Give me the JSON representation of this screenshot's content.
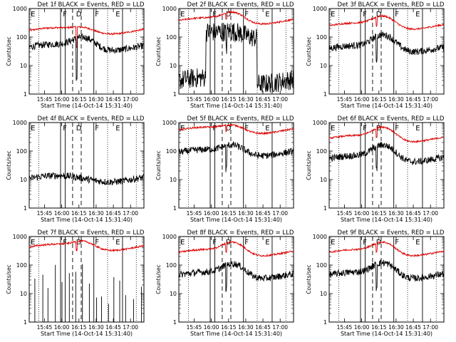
{
  "chart_data": [
    {
      "type": "line",
      "title": "Det 1f BLACK = Events, RED = LLD",
      "xlabel": "Start Time (14-Oct-14 15:31:40)",
      "ylabel": "Counts/sec",
      "yscale": "log",
      "ylim": [
        1,
        1000
      ],
      "x_ticks": [
        "15:45",
        "16:00",
        "16:15",
        "16:30",
        "16:45",
        "17:00"
      ],
      "y_ticks": [
        "1",
        "10",
        "100",
        "1000"
      ],
      "region_labels": [
        "E",
        "F",
        "D",
        "F",
        "E"
      ],
      "series": [
        {
          "color": "#dd0000",
          "approx_level": 170,
          "bump": 1.3,
          "drop": 0.2
        },
        {
          "color": "#000000",
          "approx_level": 45,
          "bump": 2.2,
          "drop": 0.04
        }
      ]
    },
    {
      "type": "line",
      "title": "Det 2f BLACK = Events, RED = LLD",
      "xlabel": "Start Time (14-Oct-14 15:31:40)",
      "ylabel": "Counts/sec",
      "yscale": "log",
      "ylim": [
        1,
        1000
      ],
      "x_ticks": [
        "15:45",
        "16:00",
        "16:15",
        "16:30",
        "16:45",
        "17:00"
      ],
      "y_ticks": [
        "1",
        "10",
        "100",
        "1000"
      ],
      "region_labels": [
        "E",
        "F",
        "D",
        "F",
        "E"
      ],
      "series": [
        {
          "color": "#dd0000",
          "approx_level": 380,
          "bump": 2.0,
          "drop": 0.6
        },
        {
          "color": "#000000",
          "approx_level": 3,
          "plateau": 120,
          "bump": 1.3,
          "drop": 0.3
        }
      ]
    },
    {
      "type": "line",
      "title": "Det 3f BLACK = Events, RED = LLD",
      "xlabel": "Start Time (14-Oct-14 15:31:40)",
      "ylabel": "Counts/sec",
      "yscale": "log",
      "ylim": [
        1,
        1000
      ],
      "x_ticks": [
        "15:45",
        "16:00",
        "16:15",
        "16:30",
        "16:45",
        "17:00"
      ],
      "y_ticks": [
        "1",
        "10",
        "100",
        "1000"
      ],
      "region_labels": [
        "E",
        "F",
        "D",
        "F",
        "E"
      ],
      "series": [
        {
          "color": "#dd0000",
          "approx_level": 250,
          "bump": 2.2,
          "drop": 0.5
        },
        {
          "color": "#000000",
          "approx_level": 40,
          "bump": 3.0,
          "drop": 0.15
        }
      ]
    },
    {
      "type": "line",
      "title": "Det 4f BLACK = Events, RED = LLD",
      "xlabel": "Start Time (14-Oct-14 15:31:40)",
      "ylabel": "Counts/sec",
      "yscale": "log",
      "ylim": [
        1,
        1000
      ],
      "x_ticks": [
        "15:45",
        "16:00",
        "16:15",
        "16:30",
        "16:45",
        "17:00"
      ],
      "y_ticks": [
        "1",
        "10",
        "100",
        "1000"
      ],
      "region_labels": [
        "E",
        "F",
        "D",
        "F",
        "E"
      ],
      "series": [
        {
          "color": "#000000",
          "approx_level": 11,
          "bump": 1.0,
          "drop": 1.0
        }
      ]
    },
    {
      "type": "line",
      "title": "Det 5f BLACK = Events, RED = LLD",
      "xlabel": "Start Time (14-Oct-14 15:31:40)",
      "ylabel": "Counts/sec",
      "yscale": "log",
      "ylim": [
        1,
        1000
      ],
      "x_ticks": [
        "15:45",
        "16:00",
        "16:15",
        "16:30",
        "16:45",
        "17:00"
      ],
      "y_ticks": [
        "1",
        "10",
        "100",
        "1000"
      ],
      "region_labels": [
        "E",
        "F",
        "D",
        "F",
        "E"
      ],
      "series": [
        {
          "color": "#dd0000",
          "approx_level": 550,
          "bump": 1.5,
          "drop": 0.6
        },
        {
          "color": "#000000",
          "approx_level": 90,
          "bump": 1.8,
          "drop": 0.15
        }
      ]
    },
    {
      "type": "line",
      "title": "Det 6f BLACK = Events, RED = LLD",
      "xlabel": "Start Time (14-Oct-14 15:31:40)",
      "ylabel": "Counts/sec",
      "yscale": "log",
      "ylim": [
        1,
        1000
      ],
      "x_ticks": [
        "15:45",
        "16:00",
        "16:15",
        "16:30",
        "16:45",
        "17:00"
      ],
      "y_ticks": [
        "1",
        "10",
        "100",
        "1000"
      ],
      "region_labels": [
        "E",
        "F",
        "D",
        "F",
        "E"
      ],
      "series": [
        {
          "color": "#dd0000",
          "approx_level": 280,
          "bump": 2.5,
          "drop": 0.5
        },
        {
          "color": "#000000",
          "approx_level": 55,
          "bump": 3.0,
          "drop": 0.15
        }
      ]
    },
    {
      "type": "line",
      "title": "Det 7f BLACK = Events, RED = LLD",
      "xlabel": "Start Time (14-Oct-14 15:31:40)",
      "ylabel": "Counts/sec",
      "yscale": "log",
      "ylim": [
        1,
        1000
      ],
      "x_ticks": [
        "15:45",
        "16:00",
        "16:15",
        "16:30",
        "16:45",
        "17:00"
      ],
      "y_ticks": [
        "1",
        "10",
        "100",
        "1000"
      ],
      "region_labels": [
        "E",
        "F",
        "D",
        "F",
        "E"
      ],
      "series": [
        {
          "color": "#dd0000",
          "approx_level": 430,
          "bump": 1.6,
          "drop": 0.5
        },
        {
          "color": "#000000",
          "approx_level": 1,
          "spikes": true
        }
      ]
    },
    {
      "type": "line",
      "title": "Det 8f BLACK = Events, RED = LLD",
      "xlabel": "Start Time (14-Oct-14 15:31:40)",
      "ylabel": "Counts/sec",
      "yscale": "log",
      "ylim": [
        1,
        1000
      ],
      "x_ticks": [
        "15:45",
        "16:00",
        "16:15",
        "16:30",
        "16:45",
        "17:00"
      ],
      "y_ticks": [
        "1",
        "10",
        "100",
        "1000"
      ],
      "region_labels": [
        "E",
        "F",
        "D",
        "F",
        "E"
      ],
      "series": [
        {
          "color": "#dd0000",
          "approx_level": 280,
          "bump": 2.3,
          "drop": 0.5
        },
        {
          "color": "#000000",
          "approx_level": 45,
          "bump": 2.5,
          "drop": 0.15
        }
      ]
    },
    {
      "type": "line",
      "title": "Det 9f BLACK = Events, RED = LLD",
      "xlabel": "Start Time (14-Oct-14 15:31:40)",
      "ylabel": "Counts/sec",
      "yscale": "log",
      "ylim": [
        1,
        1000
      ],
      "x_ticks": [
        "15:45",
        "16:00",
        "16:15",
        "16:30",
        "16:45",
        "17:00"
      ],
      "y_ticks": [
        "1",
        "10",
        "100",
        "1000"
      ],
      "region_labels": [
        "E",
        "F",
        "D",
        "F",
        "E"
      ],
      "series": [
        {
          "color": "#dd0000",
          "approx_level": 280,
          "bump": 2.3,
          "drop": 0.5
        },
        {
          "color": "#000000",
          "approx_level": 45,
          "bump": 2.7,
          "drop": 0.15
        }
      ]
    }
  ]
}
